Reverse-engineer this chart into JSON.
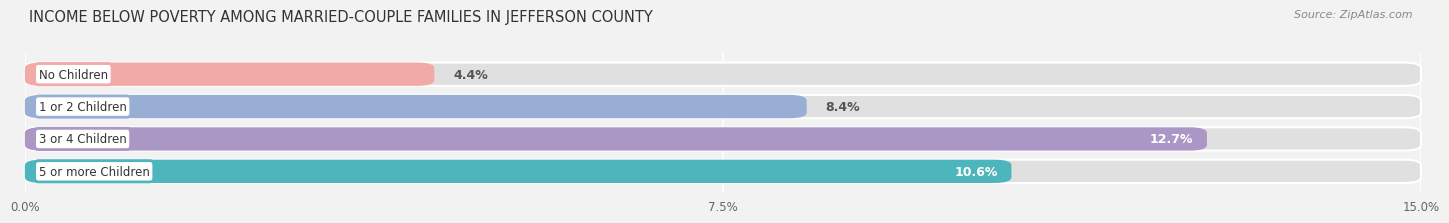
{
  "title": "INCOME BELOW POVERTY AMONG MARRIED-COUPLE FAMILIES IN JEFFERSON COUNTY",
  "source": "Source: ZipAtlas.com",
  "categories": [
    "No Children",
    "1 or 2 Children",
    "3 or 4 Children",
    "5 or more Children"
  ],
  "values": [
    4.4,
    8.4,
    12.7,
    10.6
  ],
  "bar_colors": [
    "#f2aaa8",
    "#98aed4",
    "#ab97c5",
    "#4db5bc"
  ],
  "label_text_colors": [
    "#555555",
    "#555555",
    "#ffffff",
    "#ffffff"
  ],
  "value_label_inside": [
    false,
    false,
    true,
    true
  ],
  "xlim": [
    0,
    15.0
  ],
  "xmax": 15.0,
  "xticks": [
    0.0,
    7.5,
    15.0
  ],
  "xticklabels": [
    "0.0%",
    "7.5%",
    "15.0%"
  ],
  "background_color": "#f2f2f2",
  "bar_bg_color": "#e0e0e0",
  "title_fontsize": 10.5,
  "source_fontsize": 8,
  "value_fontsize": 9,
  "category_fontsize": 8.5,
  "tick_fontsize": 8.5
}
